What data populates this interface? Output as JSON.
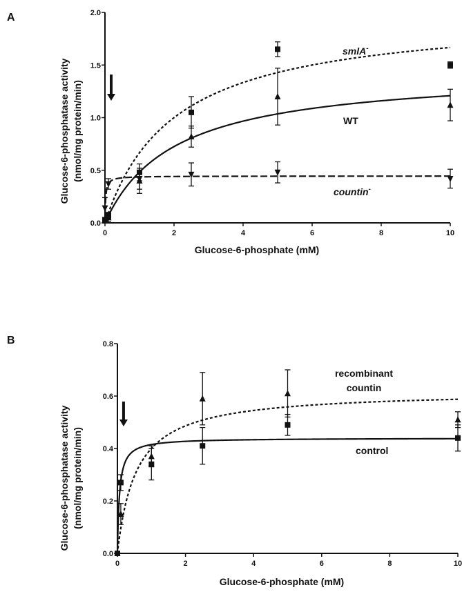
{
  "chart_data": [
    {
      "panel": "A",
      "type": "scatter",
      "xlabel": "Glucose-6-phosphate (mM)",
      "ylabel": "Glucose-6-phosphatase activity",
      "ylabel_units": "(nmol/mg protein/min)",
      "xlim": [
        0,
        10
      ],
      "ylim": [
        0,
        2.0
      ],
      "xticks": [
        0,
        2,
        4,
        6,
        8,
        10
      ],
      "xtick_labels": [
        "0",
        "2",
        "4",
        "6",
        "8",
        "10"
      ],
      "yticks": [
        0,
        0.5,
        1.0,
        1.5,
        2.0
      ],
      "ytick_labels": [
        "0.0",
        "0.5",
        "1.0",
        "1.5",
        "2.0"
      ],
      "arrow_x": 0.1,
      "series": [
        {
          "name": "smlA",
          "name_superscript": "-",
          "marker": "square",
          "curve": "dotted",
          "fit": {
            "vmax": 2.0,
            "km": 2.0
          },
          "x": [
            0,
            0.1,
            1,
            2.5,
            5,
            10
          ],
          "y": [
            0.03,
            0.07,
            0.48,
            1.05,
            1.65,
            1.5
          ],
          "err": [
            0.02,
            0.03,
            0.08,
            0.15,
            0.07,
            0.03
          ]
        },
        {
          "name": "WT",
          "name_superscript": "",
          "marker": "triangle-up",
          "curve": "solid",
          "fit": {
            "vmax": 1.45,
            "km": 2.0
          },
          "x": [
            0,
            0.1,
            1,
            2.5,
            5,
            10
          ],
          "y": [
            0.02,
            0.05,
            0.4,
            0.82,
            1.2,
            1.12
          ],
          "err": [
            0.02,
            0.04,
            0.12,
            0.1,
            0.27,
            0.15
          ]
        },
        {
          "name": "countin",
          "name_superscript": "-",
          "marker": "triangle-down",
          "curve": "dashed",
          "fit": {
            "vmax": 0.445,
            "km": 0.02
          },
          "x": [
            0,
            0.1,
            1,
            2.5,
            5,
            10
          ],
          "y": [
            0.14,
            0.37,
            0.42,
            0.46,
            0.48,
            0.42
          ],
          "err": [
            0.1,
            0.05,
            0.1,
            0.11,
            0.1,
            0.09
          ]
        }
      ]
    },
    {
      "panel": "B",
      "type": "scatter",
      "xlabel": "Glucose-6-phosphate (mM)",
      "ylabel": "Glucose-6-phosphatase activity",
      "ylabel_units": "(nmol/mg protein/min)",
      "xlim": [
        0,
        10
      ],
      "ylim": [
        0,
        0.8
      ],
      "xticks": [
        0,
        2,
        4,
        6,
        8,
        10
      ],
      "xtick_labels": [
        "0",
        "2",
        "4",
        "6",
        "8",
        "10"
      ],
      "yticks": [
        0,
        0.2,
        0.4,
        0.6,
        0.8
      ],
      "ytick_labels": [
        "0.0",
        "0.2",
        "0.4",
        "0.6",
        "0.8"
      ],
      "arrow_x": 0.1,
      "series": [
        {
          "name": "recombinant countin",
          "name_lines": [
            "recombinant",
            "countin"
          ],
          "marker": "triangle-up",
          "curve": "dotted",
          "fit": {
            "vmax": 0.62,
            "km": 0.55
          },
          "x": [
            0,
            0.1,
            1,
            2.5,
            5,
            10
          ],
          "y": [
            0.0,
            0.15,
            0.37,
            0.59,
            0.61,
            0.51
          ],
          "err": [
            0.0,
            0.04,
            0.04,
            0.1,
            0.09,
            0.03
          ]
        },
        {
          "name": "control",
          "name_lines": [
            "control"
          ],
          "marker": "square",
          "curve": "solid",
          "fit": {
            "vmax": 0.44,
            "km": 0.06
          },
          "x": [
            0,
            0.1,
            1,
            2.5,
            5,
            10
          ],
          "y": [
            0.0,
            0.27,
            0.34,
            0.41,
            0.49,
            0.44
          ],
          "err": [
            0.0,
            0.03,
            0.06,
            0.07,
            0.04,
            0.05
          ]
        }
      ]
    }
  ]
}
